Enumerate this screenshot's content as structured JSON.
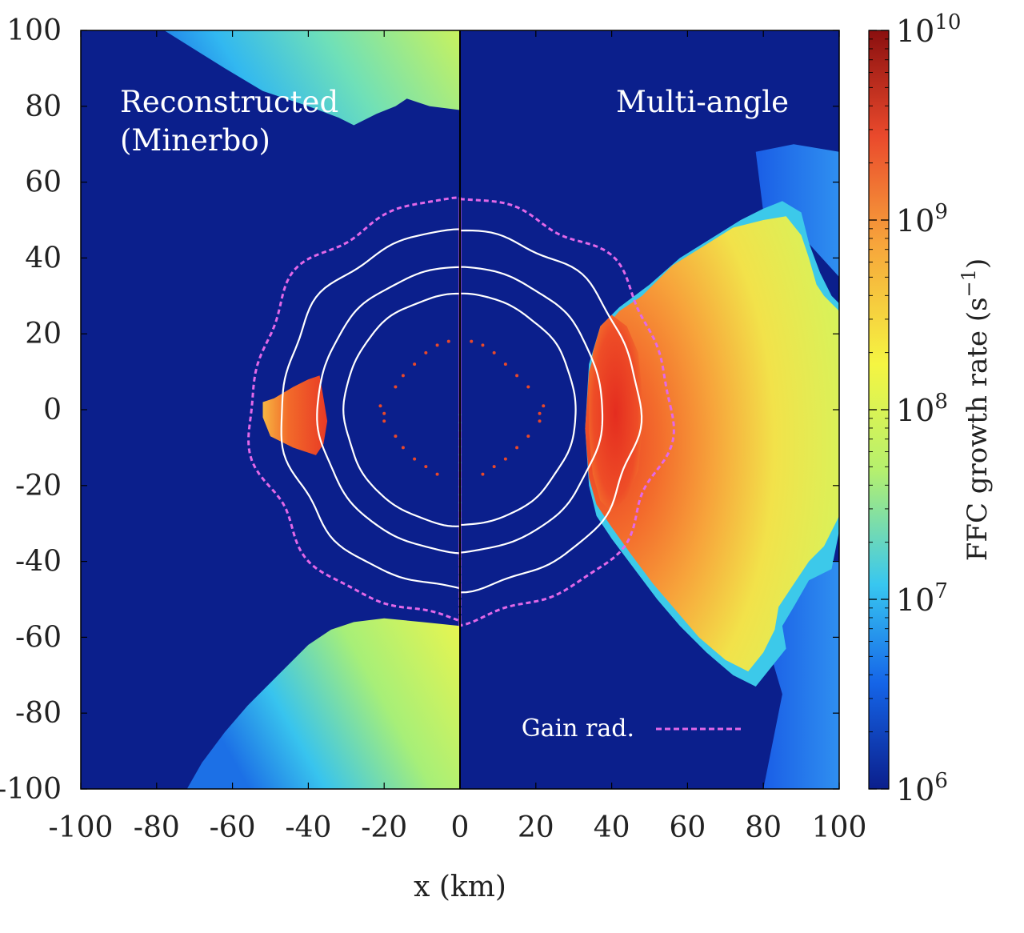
{
  "chart_data": {
    "type": "heatmap",
    "title": "",
    "xlabel": "x (km)",
    "ylabel": "",
    "xlim": [
      -100,
      100
    ],
    "ylim": [
      -100,
      100
    ],
    "x_ticks": [
      "-100",
      "-80",
      "-60",
      "-40",
      "-20",
      "0",
      "20",
      "40",
      "60",
      "80",
      "100"
    ],
    "y_ticks": [
      "100",
      "80",
      "60",
      "40",
      "20",
      "0",
      "-20",
      "-40",
      "-60",
      "-80",
      "-100"
    ],
    "x_tick_values": [
      -100,
      -80,
      -60,
      -40,
      -20,
      0,
      20,
      40,
      60,
      80,
      100
    ],
    "y_tick_values": [
      100,
      80,
      60,
      40,
      20,
      0,
      -20,
      -40,
      -60,
      -80,
      -100
    ],
    "panels": [
      {
        "name": "Reconstructed (Minerbo)",
        "x_range": [
          -100,
          0
        ],
        "label_lines": [
          "Reconstructed",
          "(Minerbo)"
        ]
      },
      {
        "name": "Multi-angle",
        "x_range": [
          0,
          100
        ],
        "label_lines": [
          "Multi-angle"
        ]
      }
    ],
    "colorbar": {
      "label": "FFC growth rate (s−1)",
      "label_main": "FFC growth rate (s",
      "label_exp": "−1",
      "label_close": ")",
      "scale": "log",
      "range": [
        1000000,
        10000000000
      ],
      "tick_values": [
        1000000,
        10000000,
        100000000,
        1000000000,
        10000000000
      ],
      "ticks": [
        {
          "base": "10",
          "exp": "6"
        },
        {
          "base": "10",
          "exp": "7"
        },
        {
          "base": "10",
          "exp": "8"
        },
        {
          "base": "10",
          "exp": "9"
        },
        {
          "base": "10",
          "exp": "10"
        }
      ],
      "colormap": [
        "#0b1f8c",
        "#1565e8",
        "#38c7f0",
        "#b5f06e",
        "#f5f542",
        "#f7a43b",
        "#ea4a2c",
        "#8a0f0f"
      ]
    },
    "legend": [
      {
        "label": "Gain rad.",
        "style": "dashed",
        "color": "#e268e8"
      }
    ],
    "legend_position": "bottom-right",
    "contours": {
      "solid_color": "#ffffff",
      "gain_radius_color": "#e268e8",
      "solid_radii_left_km": [
        [
          44,
          48
        ],
        37,
        30
      ],
      "solid_radii_right_km": [
        [
          45,
          48
        ],
        38,
        31
      ],
      "gain_radius_km_approx": 55
    },
    "regions": {
      "background_color": "#0b1f8c",
      "left_hotspot_km": {
        "x": [
          -52,
          -35
        ],
        "y": [
          -12,
          9
        ]
      },
      "right_hot_lobe_km": {
        "x": [
          34,
          100
        ],
        "y": [
          -60,
          58
        ]
      }
    }
  }
}
